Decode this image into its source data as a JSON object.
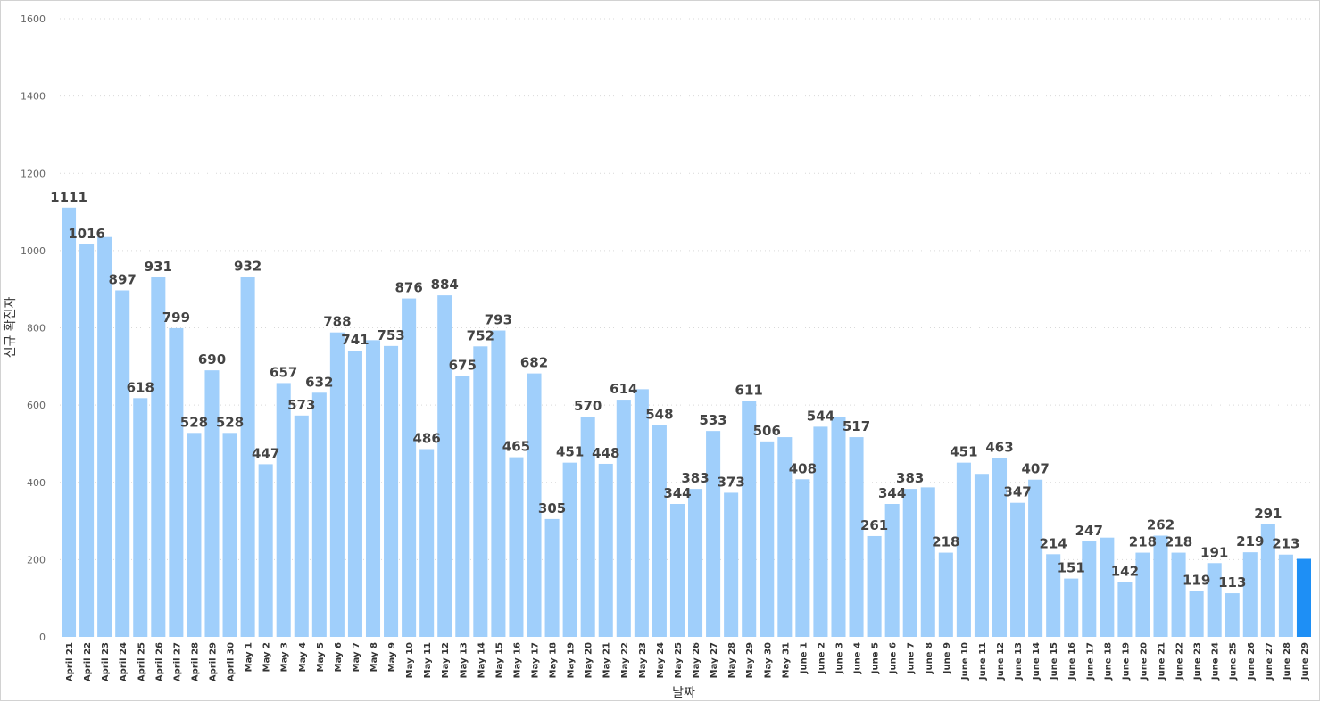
{
  "chart_data": {
    "type": "bar",
    "title": "",
    "xlabel": "날짜",
    "ylabel": "신규 확진자",
    "ylim": [
      0,
      1600
    ],
    "yticks": [
      0,
      200,
      400,
      600,
      800,
      1000,
      1200,
      1400,
      1600
    ],
    "grid": true,
    "colors": {
      "bar": "#a0cffb",
      "highlight": "#1e8ff5",
      "grid": "#d9d9d9"
    },
    "highlight_index": 69,
    "categories": [
      "April 21",
      "April 22",
      "April 23",
      "April 24",
      "April 25",
      "April 26",
      "April 27",
      "April 28",
      "April 29",
      "April 30",
      "May 1",
      "May 2",
      "May 3",
      "May 4",
      "May 5",
      "May 6",
      "May 7",
      "May 8",
      "May 9",
      "May 10",
      "May 11",
      "May 12",
      "May 13",
      "May 14",
      "May 15",
      "May 16",
      "May 17",
      "May 18",
      "May 19",
      "May 20",
      "May 21",
      "May 22",
      "May 23",
      "May 24",
      "May 25",
      "May 26",
      "May 27",
      "May 28",
      "May 29",
      "May 30",
      "May 31",
      "June 1",
      "June 2",
      "June 3",
      "June 4",
      "June 5",
      "June 6",
      "June 7",
      "June 8",
      "June 9",
      "June 10",
      "June 11",
      "June 12",
      "June 13",
      "June 14",
      "June 15",
      "June 16",
      "June 17",
      "June 18",
      "June 19",
      "June 20",
      "June 21",
      "June 22",
      "June 23",
      "June 24",
      "June 25",
      "June 26",
      "June 27",
      "June 28",
      "June 29"
    ],
    "values": [
      1111,
      1016,
      1035,
      897,
      618,
      931,
      799,
      528,
      690,
      528,
      932,
      447,
      657,
      573,
      632,
      788,
      741,
      768,
      753,
      876,
      486,
      884,
      675,
      752,
      793,
      465,
      682,
      305,
      451,
      570,
      448,
      614,
      641,
      548,
      344,
      383,
      533,
      373,
      611,
      506,
      517,
      408,
      544,
      568,
      517,
      261,
      344,
      383,
      387,
      218,
      451,
      422,
      463,
      347,
      407,
      214,
      151,
      247,
      257,
      142,
      218,
      262,
      218,
      119,
      191,
      113,
      219,
      291,
      213,
      202
    ],
    "labels": [
      "1111",
      "1016",
      "",
      "897",
      "618",
      "931",
      "799",
      "528",
      "690",
      "528",
      "932",
      "447",
      "657",
      "573",
      "632",
      "788",
      "741",
      "",
      "753",
      "876",
      "486",
      "884",
      "675",
      "752",
      "793",
      "465",
      "682",
      "305",
      "451",
      "570",
      "448",
      "614",
      "",
      "548",
      "344",
      "383",
      "533",
      "373",
      "611",
      "506",
      "",
      "408",
      "544",
      "",
      "517",
      "261",
      "344",
      "383",
      "",
      "218",
      "451",
      "",
      "463",
      "347",
      "407",
      "214",
      "151",
      "247",
      "",
      "142",
      "218",
      "262",
      "218",
      "119",
      "191",
      "113",
      "219",
      "291",
      "213",
      ""
    ]
  }
}
